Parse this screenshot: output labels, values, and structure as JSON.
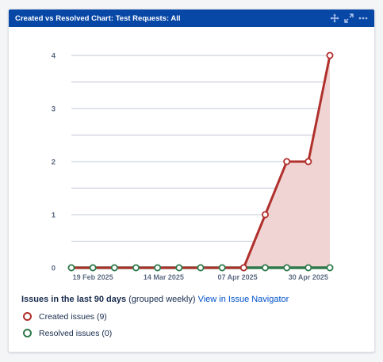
{
  "gadget": {
    "title": "Created vs Resolved Chart: Test Requests: All",
    "icons": [
      "move-icon",
      "expand-icon",
      "more-icon"
    ]
  },
  "summary": {
    "bold": "Issues in the last 90 days",
    "grouping": "(grouped weekly)",
    "link": "View in Issue Navigator"
  },
  "legend": [
    {
      "label": "Created issues (9)",
      "color": "#b0302c"
    },
    {
      "label": "Resolved issues (0)",
      "color": "#2e7a4a"
    }
  ],
  "colors": {
    "header": "#0747a6",
    "created": "#b0302c",
    "created_fill": "#f0d3d3",
    "resolved": "#2e7a4a",
    "grid": "#aeb5c2"
  },
  "chart_data": {
    "type": "line",
    "x": [
      "2025-02-12",
      "2025-02-19",
      "2025-02-26",
      "2025-03-05",
      "2025-03-12",
      "2025-03-19",
      "2025-03-26",
      "2025-04-02",
      "2025-04-09",
      "2025-04-16",
      "2025-04-23",
      "2025-04-30",
      "2025-05-07"
    ],
    "x_tick_labels": [
      "19 Feb 2025",
      "14 Mar 2025",
      "07 Apr 2025",
      "30 Apr 2025"
    ],
    "y_ticks": [
      0,
      1,
      2,
      3,
      4
    ],
    "ylim": [
      0,
      4
    ],
    "grid": true,
    "series": [
      {
        "name": "Created issues (9)",
        "values": [
          0,
          0,
          0,
          0,
          0,
          0,
          0,
          0,
          0,
          1,
          2,
          2,
          4
        ]
      },
      {
        "name": "Resolved issues (0)",
        "values": [
          0,
          0,
          0,
          0,
          0,
          0,
          0,
          0,
          0,
          0,
          0,
          0,
          0
        ]
      }
    ]
  }
}
